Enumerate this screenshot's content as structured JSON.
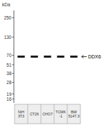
{
  "chart_data": {
    "type": "blot",
    "categories": [
      "NIH\n3T3",
      "CT26",
      "CHO7",
      "TCMK\n-1",
      "BW\n5147.3"
    ],
    "values": [
      67,
      67,
      67,
      67,
      67
    ],
    "color": "#1a1a1a",
    "ylabel": "kDa",
    "log": "y",
    "ylim": [
      14,
      320
    ],
    "yticks": [
      250,
      130,
      70,
      51,
      38,
      28,
      19,
      16
    ],
    "tick_labels": "y",
    "annotations": [
      {
        "text": "DDX6",
        "y": 67
      }
    ]
  }
}
